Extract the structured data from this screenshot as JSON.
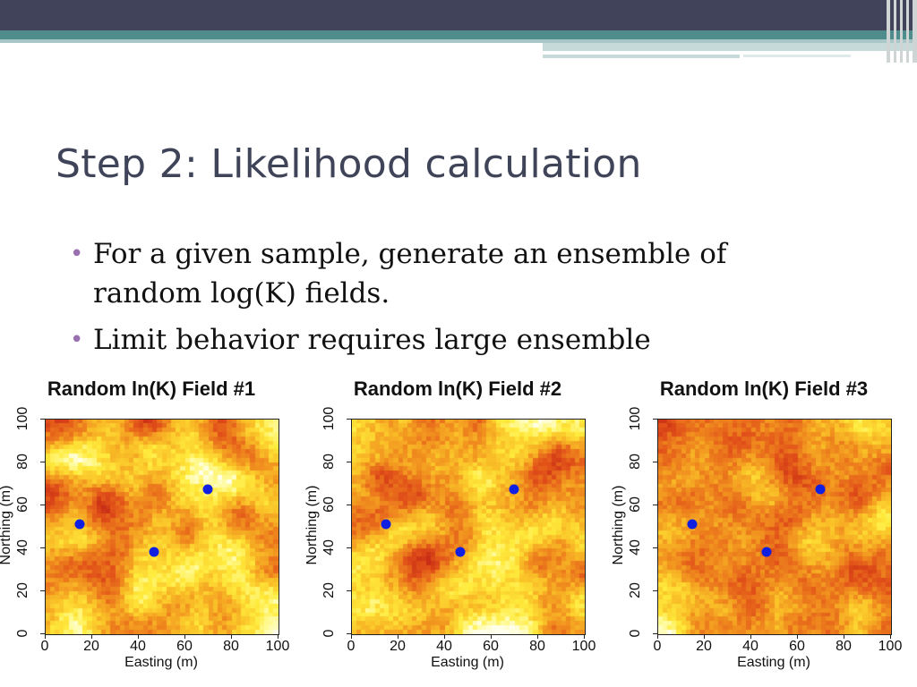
{
  "slide": {
    "title": "Step 2: Likelihood calculation",
    "bullets": [
      "For a given sample, generate an ensemble of random log(K) fields.",
      "Limit behavior requires large ensemble"
    ]
  },
  "colors": {
    "title": "#3f4459",
    "bullet_marker": "#9a6fb0",
    "well": "#1020e0",
    "bar_dark": "#41435a",
    "bar_teal": "#4f8c8c"
  },
  "chart_data": [
    {
      "type": "heatmap",
      "title": "Random ln(K) Field #1",
      "xlabel": "Easting (m)",
      "ylabel": "Northing (m)",
      "xticks": [
        "0",
        "20",
        "40",
        "60",
        "80",
        "100"
      ],
      "yticks": [
        "0",
        "20",
        "40",
        "60",
        "80",
        "100"
      ],
      "xlim": [
        0,
        100
      ],
      "ylim": [
        0,
        100
      ],
      "wells": [
        {
          "x": 15,
          "y": 51
        },
        {
          "x": 47,
          "y": 38
        },
        {
          "x": 70,
          "y": 67
        }
      ],
      "seed": 11
    },
    {
      "type": "heatmap",
      "title": "Random ln(K) Field #2",
      "xlabel": "Easting (m)",
      "ylabel": "Northing (m)",
      "xticks": [
        "0",
        "20",
        "40",
        "60",
        "80",
        "100"
      ],
      "yticks": [
        "0",
        "20",
        "40",
        "60",
        "80",
        "100"
      ],
      "xlim": [
        0,
        100
      ],
      "ylim": [
        0,
        100
      ],
      "wells": [
        {
          "x": 15,
          "y": 51
        },
        {
          "x": 47,
          "y": 38
        },
        {
          "x": 70,
          "y": 67
        }
      ],
      "seed": 29
    },
    {
      "type": "heatmap",
      "title": "Random ln(K) Field #3",
      "xlabel": "Easting (m)",
      "ylabel": "Northing (m)",
      "xticks": [
        "0",
        "20",
        "40",
        "60",
        "80",
        "100"
      ],
      "yticks": [
        "0",
        "20",
        "40",
        "60",
        "80",
        "100"
      ],
      "xlim": [
        0,
        100
      ],
      "ylim": [
        0,
        100
      ],
      "wells": [
        {
          "x": 15,
          "y": 51
        },
        {
          "x": 47,
          "y": 38
        },
        {
          "x": 70,
          "y": 67
        }
      ],
      "seed": 47
    }
  ]
}
